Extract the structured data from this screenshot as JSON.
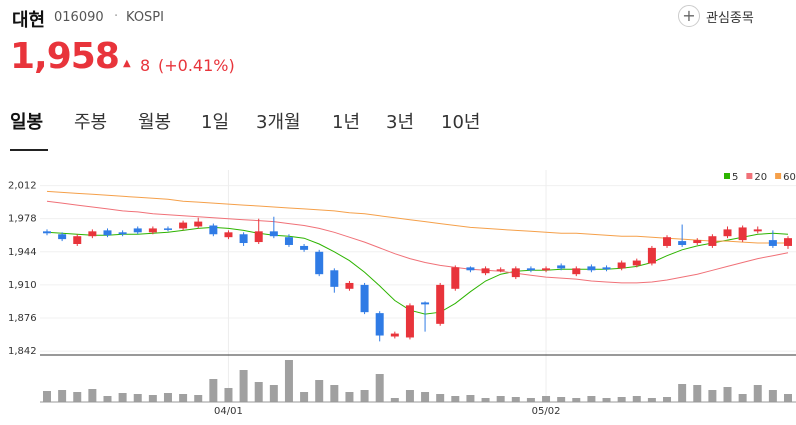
{
  "header": {
    "name": "대현",
    "code": "016090",
    "separator": "·",
    "market": "KOSPI",
    "favorite": "관심종목",
    "price": "1,958",
    "change": "8",
    "change_pct": "(+0.41%)"
  },
  "tabs": [
    "일봉",
    "주봉",
    "월봉",
    "1일",
    "3개월",
    "1년",
    "3년",
    "10년"
  ],
  "chart_data": {
    "type": "candlestick",
    "up_color": "#e8343b",
    "down_color": "#2f7be5",
    "grid": true,
    "categories": [
      null,
      null,
      null,
      null,
      null,
      null,
      null,
      null,
      null,
      null,
      null,
      null,
      "04/01",
      null,
      null,
      null,
      null,
      null,
      null,
      null,
      null,
      null,
      null,
      null,
      null,
      null,
      null,
      null,
      null,
      null,
      null,
      null,
      null,
      "05/02",
      null,
      null,
      null,
      null,
      null,
      null,
      null,
      null,
      null,
      null,
      null,
      null,
      null,
      null,
      null,
      null
    ],
    "open": [
      1965,
      1962,
      1952,
      1960,
      1966,
      1964,
      1968,
      1964,
      1968,
      1968,
      1970,
      1971,
      1959,
      1962,
      1954,
      1965,
      1959,
      1950,
      1944,
      1925,
      1906,
      1910,
      1881,
      1857,
      1856,
      1892,
      1870,
      1906,
      1928,
      1922,
      1925,
      1918,
      1927,
      1925,
      1930,
      1921,
      1929,
      1928,
      1927,
      1930,
      1932,
      1950,
      1955,
      1953,
      1950,
      1960,
      1956,
      1965,
      1956,
      1950
    ],
    "high": [
      1967,
      1964,
      1962,
      1967,
      1968,
      1966,
      1970,
      1970,
      1970,
      1976,
      1979,
      1973,
      1966,
      1964,
      1978,
      1980,
      1962,
      1952,
      1946,
      1927,
      1914,
      1912,
      1883,
      1862,
      1891,
      1893,
      1912,
      1930,
      1929,
      1929,
      1928,
      1929,
      1929,
      1929,
      1932,
      1929,
      1931,
      1930,
      1935,
      1937,
      1950,
      1961,
      1972,
      1958,
      1962,
      1970,
      1971,
      1970,
      1966,
      1960
    ],
    "low": [
      1961,
      1955,
      1950,
      1958,
      1959,
      1960,
      1962,
      1962,
      1965,
      1966,
      1968,
      1960,
      1957,
      1950,
      1952,
      1958,
      1949,
      1944,
      1919,
      1902,
      1904,
      1880,
      1852,
      1855,
      1854,
      1862,
      1868,
      1904,
      1923,
      1920,
      1923,
      1916,
      1923,
      1923,
      1925,
      1919,
      1923,
      1924,
      1925,
      1928,
      1930,
      1948,
      1949,
      1951,
      1948,
      1958,
      1954,
      1963,
      1948,
      1947
    ],
    "close": [
      1963,
      1957,
      1960,
      1965,
      1961,
      1962,
      1964,
      1968,
      1967,
      1974,
      1975,
      1962,
      1964,
      1953,
      1965,
      1960,
      1951,
      1946,
      1921,
      1908,
      1912,
      1882,
      1858,
      1860,
      1889,
      1890,
      1910,
      1928,
      1925,
      1927,
      1926,
      1927,
      1925,
      1927,
      1927,
      1927,
      1925,
      1926,
      1933,
      1935,
      1948,
      1959,
      1951,
      1956,
      1960,
      1967,
      1969,
      1967,
      1950,
      1958
    ],
    "series": [
      {
        "name": "5",
        "color": "#2db400",
        "values": [
          1964,
          1963,
          1962,
          1961,
          1961,
          1962,
          1962,
          1963,
          1964,
          1966,
          1968,
          1969,
          1968,
          1966,
          1963,
          1961,
          1960,
          1958,
          1952,
          1944,
          1935,
          1923,
          1909,
          1894,
          1884,
          1880,
          1882,
          1891,
          1903,
          1914,
          1921,
          1924,
          1925,
          1925,
          1926,
          1926,
          1926,
          1926,
          1927,
          1929,
          1933,
          1940,
          1946,
          1950,
          1953,
          1956,
          1959,
          1962,
          1963,
          1962
        ]
      },
      {
        "name": "20",
        "color": "#f07178",
        "values": [
          1996,
          1994,
          1992,
          1990,
          1988,
          1986,
          1985,
          1983,
          1982,
          1981,
          1980,
          1979,
          1978,
          1977,
          1976,
          1975,
          1973,
          1971,
          1968,
          1964,
          1959,
          1954,
          1948,
          1942,
          1937,
          1933,
          1930,
          1928,
          1926,
          1925,
          1924,
          1922,
          1920,
          1918,
          1917,
          1916,
          1914,
          1913,
          1912,
          1912,
          1913,
          1915,
          1918,
          1921,
          1925,
          1929,
          1933,
          1937,
          1940,
          1943
        ]
      },
      {
        "name": "60",
        "color": "#f5a04a",
        "values": [
          2006,
          2005,
          2004,
          2003,
          2002,
          2001,
          2000,
          1999,
          1998,
          1996,
          1995,
          1994,
          1993,
          1992,
          1991,
          1990,
          1989,
          1988,
          1987,
          1986,
          1984,
          1983,
          1981,
          1979,
          1977,
          1975,
          1973,
          1971,
          1969,
          1968,
          1967,
          1966,
          1965,
          1964,
          1963,
          1963,
          1962,
          1961,
          1960,
          1960,
          1959,
          1958,
          1957,
          1956,
          1955,
          1955,
          1954,
          1953,
          1953,
          1953
        ]
      }
    ],
    "ylim": [
      1838,
      2028
    ],
    "yticks": [
      {
        "value": 1842,
        "label": "1,842"
      },
      {
        "value": 1876,
        "label": "1,876"
      },
      {
        "value": 1910,
        "label": "1,910"
      },
      {
        "value": 1944,
        "label": "1,944"
      },
      {
        "value": 1978,
        "label": "1,978"
      },
      {
        "value": 2012,
        "label": "2,012"
      }
    ],
    "volume": {
      "color": "#a0a0a0",
      "ylim": [
        0,
        45
      ],
      "values": [
        11,
        12,
        10,
        13,
        6,
        9,
        8,
        7,
        9,
        8,
        7,
        23,
        14,
        32,
        20,
        17,
        42,
        10,
        22,
        17,
        10,
        12,
        28,
        4,
        12,
        10,
        8,
        6,
        7,
        4,
        6,
        5,
        4,
        6,
        5,
        4,
        6,
        4,
        5,
        6,
        4,
        5,
        18,
        17,
        12,
        15,
        8,
        17,
        12,
        8
      ]
    }
  }
}
